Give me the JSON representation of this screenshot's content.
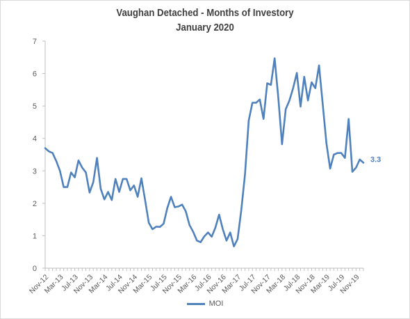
{
  "chart_data": {
    "type": "line",
    "title": "Vaughan Detached - Months of Investory",
    "subtitle": "January 2020",
    "ylim": [
      0,
      7
    ],
    "yticks": [
      0,
      1,
      2,
      3,
      4,
      5,
      6,
      7
    ],
    "x_tick_labels": [
      "Nov-12",
      "Mar-13",
      "Jul-13",
      "Nov-13",
      "Mar-14",
      "Jul-14",
      "Nov-14",
      "Mar-15",
      "Jul-15",
      "Nov-15",
      "Mar-16",
      "Jul-16",
      "Nov-16",
      "Mar-17",
      "Jul-17",
      "Nov-17",
      "Mar-18",
      "Jul-18",
      "Nov-18",
      "Mar-19",
      "Jul-19",
      "Nov-19"
    ],
    "x_tick_step": 4,
    "grid": false,
    "legend_position": "bottom",
    "series": [
      {
        "name": "MOI",
        "color": "#4f81bd",
        "last_label": "3.3",
        "values": [
          3.7,
          3.6,
          3.55,
          3.3,
          3.0,
          2.5,
          2.5,
          2.95,
          2.8,
          3.32,
          3.1,
          2.95,
          2.33,
          2.65,
          3.4,
          2.45,
          2.12,
          2.35,
          2.1,
          2.75,
          2.35,
          2.75,
          2.75,
          2.4,
          2.55,
          2.2,
          2.77,
          2.1,
          1.4,
          1.2,
          1.28,
          1.27,
          1.37,
          1.85,
          2.2,
          1.88,
          1.9,
          1.96,
          1.75,
          1.33,
          1.12,
          0.85,
          0.8,
          0.98,
          1.1,
          0.97,
          1.25,
          1.65,
          1.2,
          0.85,
          1.1,
          0.67,
          0.9,
          1.8,
          2.9,
          4.55,
          5.1,
          5.1,
          5.2,
          4.6,
          5.7,
          5.65,
          6.47,
          5.25,
          3.82,
          4.9,
          5.17,
          5.55,
          6.02,
          4.98,
          5.9,
          5.17,
          5.73,
          5.55,
          6.25,
          5.05,
          3.85,
          3.07,
          3.5,
          3.55,
          3.55,
          3.4,
          4.6,
          2.97,
          3.1,
          3.35,
          3.25
        ]
      }
    ]
  }
}
